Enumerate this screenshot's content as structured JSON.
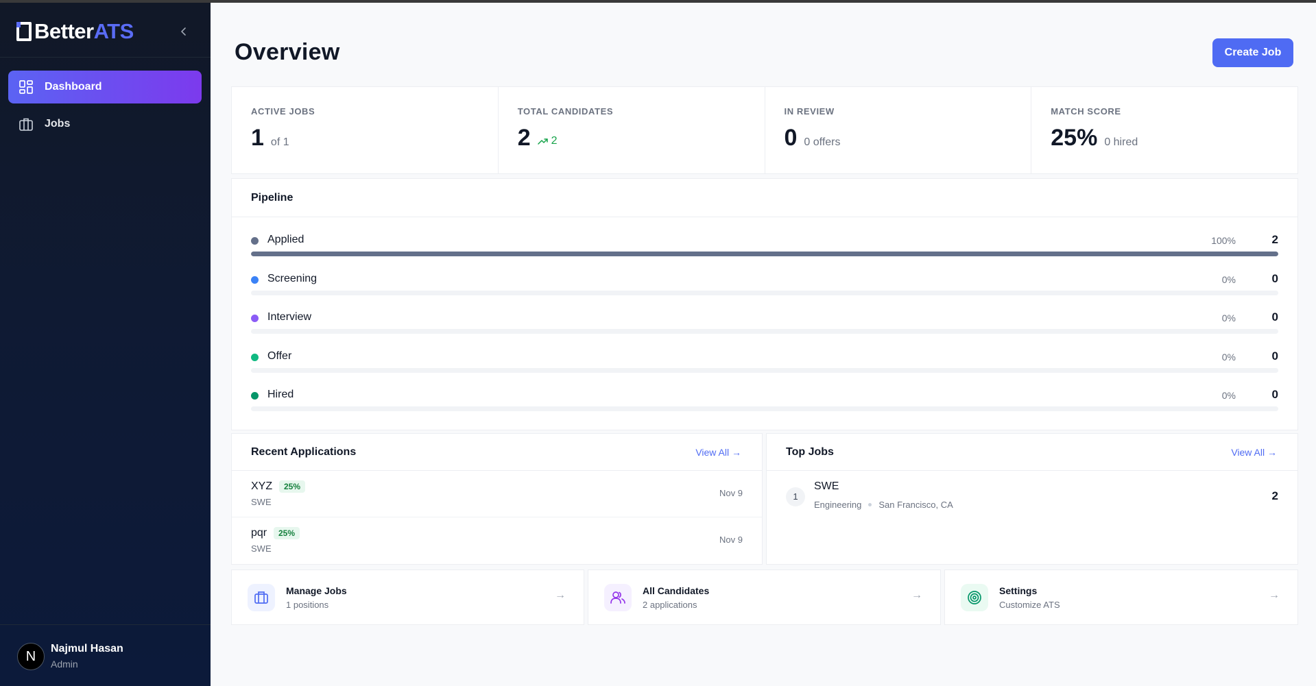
{
  "brand": {
    "part1": "Better",
    "part2": "ATS",
    "accent": "#5a6cf5"
  },
  "sidebar": {
    "collapse_icon": "chevron-left-icon",
    "items": [
      {
        "label": "Dashboard",
        "icon": "grid-icon",
        "active": true
      },
      {
        "label": "Jobs",
        "icon": "briefcase-icon",
        "active": false
      }
    ],
    "user": {
      "initial": "N",
      "name": "Najmul Hasan",
      "role": "Admin"
    }
  },
  "header": {
    "title": "Overview",
    "create_label": "Create Job"
  },
  "stats": [
    {
      "label": "ACTIVE JOBS",
      "value": "1",
      "sub": "of 1"
    },
    {
      "label": "TOTAL CANDIDATES",
      "value": "2",
      "trend": "2"
    },
    {
      "label": "IN REVIEW",
      "value": "0",
      "sub": "0 offers"
    },
    {
      "label": "MATCH SCORE",
      "value": "25%",
      "sub": "0 hired"
    }
  ],
  "pipeline": {
    "title": "Pipeline",
    "stages": [
      {
        "name": "Applied",
        "percent": "100%",
        "fill": 1.0,
        "count": "2",
        "color": "#64708a"
      },
      {
        "name": "Screening",
        "percent": "0%",
        "fill": 0,
        "count": "0",
        "color": "#3b82f6"
      },
      {
        "name": "Interview",
        "percent": "0%",
        "fill": 0,
        "count": "0",
        "color": "#8b5cf6"
      },
      {
        "name": "Offer",
        "percent": "0%",
        "fill": 0,
        "count": "0",
        "color": "#10b981"
      },
      {
        "name": "Hired",
        "percent": "0%",
        "fill": 0,
        "count": "0",
        "color": "#059669"
      }
    ]
  },
  "recent": {
    "title": "Recent Applications",
    "view_all": "View All",
    "items": [
      {
        "name": "XYZ",
        "score": "25%",
        "job": "SWE",
        "date": "Nov 9"
      },
      {
        "name": "pqr",
        "score": "25%",
        "job": "SWE",
        "date": "Nov 9"
      }
    ]
  },
  "top_jobs": {
    "title": "Top Jobs",
    "view_all": "View All",
    "items": [
      {
        "rank": "1",
        "title": "SWE",
        "department": "Engineering",
        "location": "San Francisco, CA",
        "count": "2"
      }
    ]
  },
  "quick_links": [
    {
      "title": "Manage Jobs",
      "sub": "1 positions",
      "icon": "briefcase-icon",
      "bg": "#eef2ff",
      "fg": "#4f6bf3"
    },
    {
      "title": "All Candidates",
      "sub": "2 applications",
      "icon": "users-icon",
      "bg": "#f5f0ff",
      "fg": "#9333ea"
    },
    {
      "title": "Settings",
      "sub": "Customize ATS",
      "icon": "target-icon",
      "bg": "#eafaf2",
      "fg": "#059669"
    }
  ]
}
